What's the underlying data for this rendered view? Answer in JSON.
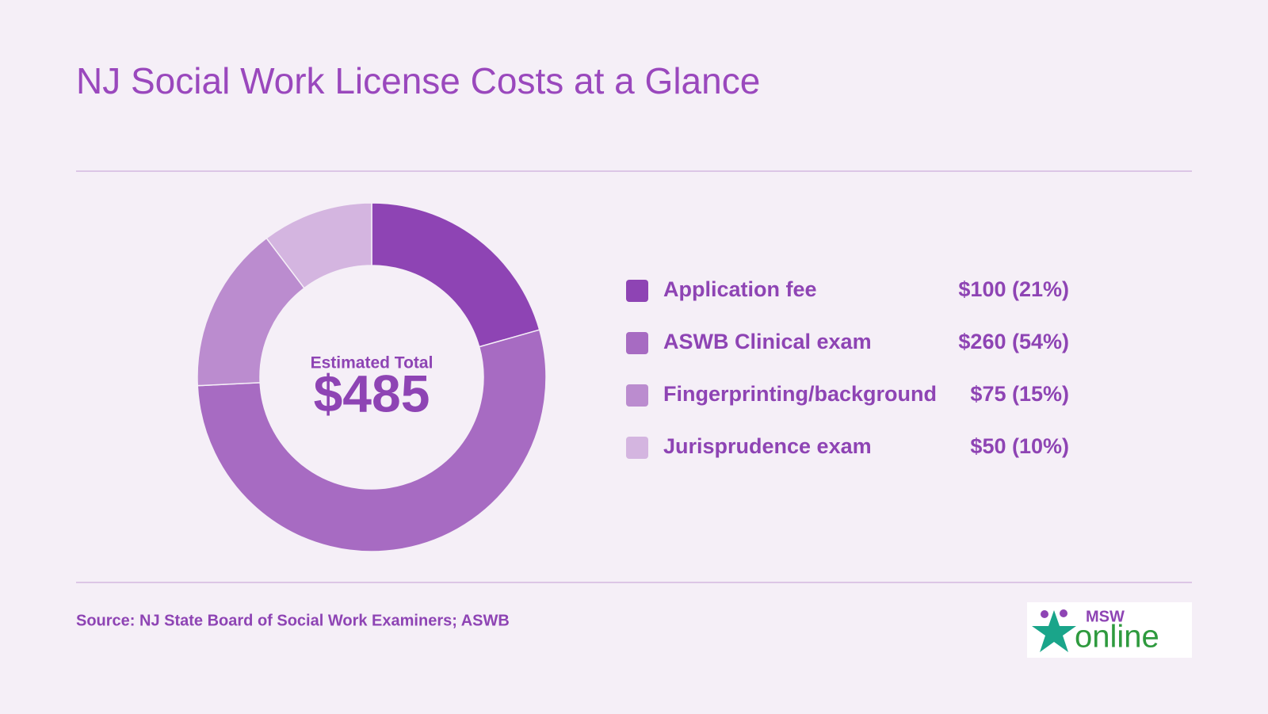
{
  "chart_data": {
    "type": "pie",
    "title": "NJ Social Work License Costs at a Glance",
    "categories": [
      "Application fee",
      "ASWB Clinical exam",
      "Fingerprinting/background",
      "Jurisprudence exam"
    ],
    "values": [
      100,
      260,
      75,
      50
    ],
    "value_labels": [
      "$100 (21%)",
      "$260 (54%)",
      "$75 (15%)",
      "$50 (10%)"
    ],
    "colors": [
      "#8e44b4",
      "#a76bc2",
      "#bb8ccf",
      "#d4b5e0"
    ],
    "center_title": "Estimated Total",
    "total": 485,
    "total_label": "$485",
    "source": "Source: NJ State Board of Social Work Examiners; ASWB",
    "logo": {
      "top": "MSW",
      "bottom": "online"
    }
  }
}
